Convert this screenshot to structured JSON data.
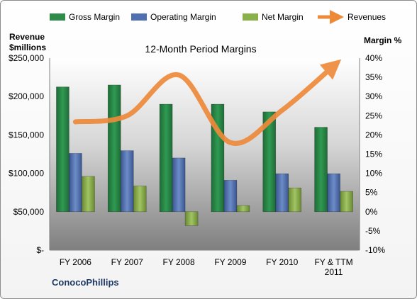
{
  "chart_data": {
    "type": "bar",
    "title": "12-Month Period Margins",
    "left_axis_label": [
      "Revenue",
      "$millions"
    ],
    "right_axis_label": "Margin %",
    "company": "ConocoPhillips",
    "categories": [
      [
        "FY 2006"
      ],
      [
        "FY 2007"
      ],
      [
        "FY 2008"
      ],
      [
        "FY 2009"
      ],
      [
        "FY 2010"
      ],
      [
        "FY & TTM",
        "2011"
      ]
    ],
    "left_ticks": [
      "$-",
      "$50,000",
      "$100,000",
      "$150,000",
      "$200,000",
      "$250,000"
    ],
    "left_range": [
      0,
      250000
    ],
    "right_ticks": [
      "-10%",
      "-5%",
      "0%",
      "5%",
      "10%",
      "15%",
      "20%",
      "25%",
      "30%",
      "35%",
      "40%"
    ],
    "right_range": [
      -10,
      40
    ],
    "series": [
      {
        "name": "Gross Margin",
        "axis": "right",
        "type": "bar",
        "color": "#2e8b4a",
        "values": [
          32.5,
          33.0,
          28.0,
          28.0,
          26.0,
          22.0
        ]
      },
      {
        "name": "Operating Margin",
        "axis": "right",
        "type": "bar",
        "color": "#4f6fb0",
        "values": [
          15.2,
          15.9,
          14.0,
          8.2,
          9.9,
          9.9
        ]
      },
      {
        "name": "Net Margin",
        "axis": "right",
        "type": "bar",
        "color": "#8ab049",
        "values": [
          9.2,
          6.7,
          -3.6,
          1.6,
          6.2,
          5.3
        ]
      },
      {
        "name": "Revenues",
        "axis": "left",
        "type": "line",
        "color": "#ed8a3a",
        "values": [
          167000,
          175000,
          228000,
          140000,
          182000,
          240000
        ]
      }
    ],
    "legend_position": "top",
    "grid": false
  }
}
